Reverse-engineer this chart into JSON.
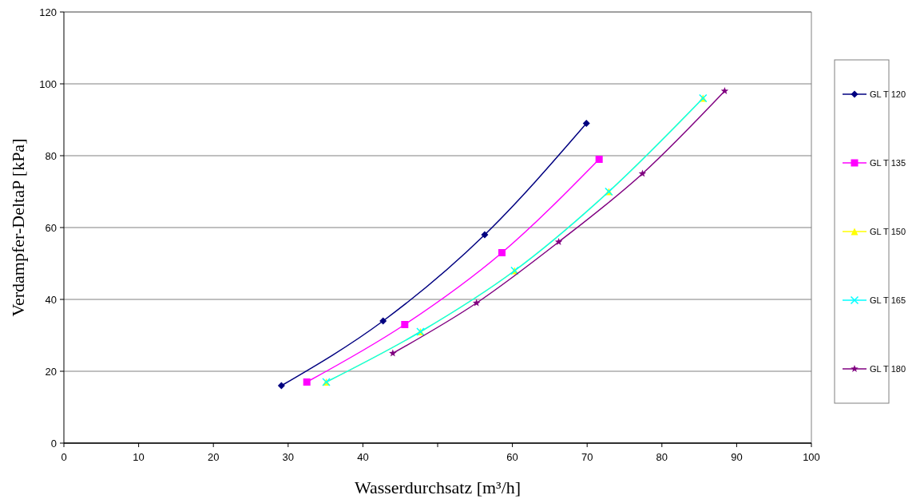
{
  "chart_data": {
    "type": "line",
    "xlabel": "Wasserdurchsatz [m³/h]",
    "ylabel": "Verdampfer-DeltaP [kPa]",
    "xlim": [
      0,
      100
    ],
    "xticks": [
      0,
      10,
      20,
      30,
      40,
      {
        "value": 50,
        "label": null
      },
      60,
      70,
      80,
      90,
      100
    ],
    "ylim": [
      0,
      120
    ],
    "yticks": [
      0,
      20,
      40,
      60,
      80,
      100,
      120
    ],
    "grid": "y",
    "legend": "right",
    "line_style": "solid",
    "series": [
      {
        "name": "GL T 120",
        "color": "#000080",
        "marker": "diamond",
        "x": [
          29.1,
          42.7,
          56.3,
          69.9
        ],
        "values": [
          16,
          34,
          58,
          89
        ]
      },
      {
        "name": "GL T 135",
        "color": "#ff00ff",
        "marker": "square",
        "x": [
          32.5,
          45.6,
          58.6,
          71.6
        ],
        "values": [
          17,
          33,
          53,
          79
        ]
      },
      {
        "name": "GL T 150",
        "color": "#ffff00",
        "marker": "triangle",
        "x": [
          35.1,
          47.7,
          60.3,
          72.9,
          85.5
        ],
        "values": [
          17,
          31,
          48,
          70,
          96
        ]
      },
      {
        "name": "GL T 165",
        "color": "#00ffff",
        "marker": "cross",
        "x": [
          35.1,
          47.7,
          60.3,
          72.9,
          85.5
        ],
        "values": [
          17,
          31,
          48,
          70,
          96
        ]
      },
      {
        "name": "GL T 180",
        "color": "#800080",
        "marker": "star",
        "x": [
          44.0,
          55.2,
          66.2,
          77.4,
          88.4
        ],
        "values": [
          25,
          39,
          56,
          75,
          98
        ]
      }
    ]
  }
}
